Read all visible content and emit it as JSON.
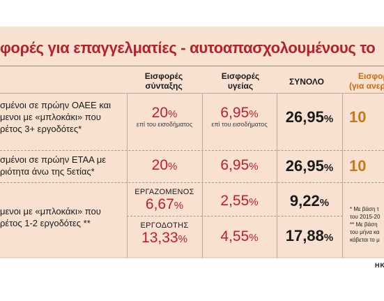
{
  "title": "φορές για επαγγελματίες - αυτοαπασχολουμένους το",
  "headers": {
    "pension": [
      "Εισφορές",
      "σύνταξης"
    ],
    "health": [
      "Εισφορές",
      "υγείας"
    ],
    "total": "ΣΥΝΟΛΟ",
    "extra": [
      "Εισφορ",
      "(για ανεργ"
    ]
  },
  "rows": [
    {
      "desc": [
        "σμένοι σε πρώην ΟΑΕΕ και",
        "μενοι με «μπλοκάκι» που",
        "ρέτος 3+ εργοδότες*"
      ],
      "pension": "20",
      "pension_sub": "επί του εισοδήματος",
      "health": "6,95",
      "health_sub": "επί του εισοδήματος",
      "total": "26,95",
      "extra": "10"
    },
    {
      "desc": [
        "σμένοι σε πρώην ΕΤΑΑ με",
        "ριότητα άνω της 5ετίας*"
      ],
      "pension": "20",
      "health": "6,95",
      "total": "26,95",
      "extra": "10"
    },
    {
      "desc": [
        "μενοι με «μπλοκάκι» που",
        "ρέτος 1-2 εργοδότες **"
      ],
      "sub": [
        {
          "role": "ΕΡΓΑΖΟΜΕΝΟΣ",
          "pension": "6,67",
          "health": "2,55",
          "total": "9,22"
        },
        {
          "role": "ΕΡΓΟΔΟΤΗΣ",
          "pension": "13,33",
          "health": "4,55",
          "total": "17,88"
        }
      ]
    }
  ],
  "pct": "%",
  "notes": [
    "* Με βάση τ",
    "του 2015-20",
    "** Με βάση",
    "του μήνα κα",
    "κάβεται το μ"
  ],
  "brand": "ΗΚ"
}
